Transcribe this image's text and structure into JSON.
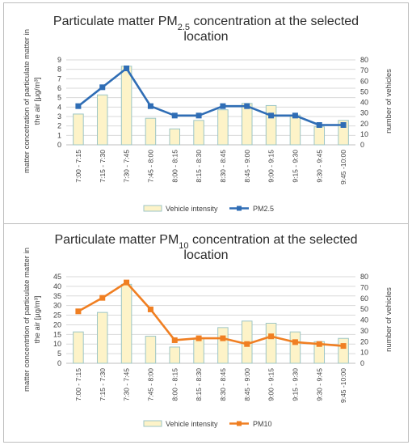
{
  "colors": {
    "bar_fill": "#fdf3c8",
    "bar_stroke": "#9dc6c6",
    "grid": "#d9d9d9",
    "pm25_line": "#2f6db5",
    "pm10_line": "#f07f22"
  },
  "chart_data": [
    {
      "type": "bar",
      "title": "Particulate matter PM",
      "title_sub": "2.5",
      "title_tail": " concentration at the selected",
      "title_line2": "location",
      "categories": [
        "7:00 - 7:15",
        "7:15 - 7:30",
        "7:30 - 7:45",
        "7:45 - 8:00",
        "8:00 - 8:15",
        "8:15 - 8:30",
        "8:30 - 8:45",
        "8:45 - 9:00",
        "9:00 - 9:15",
        "9:15 - 9:30",
        "9:30 - 9:45",
        "9:45 -10:00"
      ],
      "ylabel_line1": "matter concetration of particulate matter in",
      "ylabel_line2": "the air [µg/m³]",
      "y2label": "number of vehicles",
      "ylim": [
        0,
        9
      ],
      "y_ticks": [
        0,
        1,
        2,
        3,
        4,
        5,
        6,
        7,
        8,
        9
      ],
      "y2lim": [
        0,
        80
      ],
      "y2_ticks": [
        0,
        10,
        20,
        30,
        40,
        50,
        60,
        70,
        80
      ],
      "grid": true,
      "legend_position": "bottom",
      "series": [
        {
          "name": "Vehicle intensity",
          "kind": "bar",
          "axis": "right",
          "values": [
            29,
            47,
            74,
            25,
            15,
            23,
            33,
            39,
            37,
            28,
            17,
            23
          ]
        },
        {
          "name": "PM2.5",
          "kind": "line",
          "axis": "left",
          "values": [
            4.1,
            6.1,
            8.1,
            4.1,
            3.1,
            3.1,
            4.1,
            4.1,
            3.1,
            3.1,
            2.1,
            2.1
          ]
        }
      ]
    },
    {
      "type": "bar",
      "title": "Particulate matter PM",
      "title_sub": "10",
      "title_tail": " concentration at the selected",
      "title_line2": "location",
      "categories": [
        "7:00 - 7:15",
        "7:15 - 7:30",
        "7:30 - 7:45",
        "7:45 - 8:00",
        "8:00 - 8:15",
        "8:15 - 8:30",
        "8:30 - 8:45",
        "8:45 - 9:00",
        "9:00 - 9:15",
        "9:15 - 9:30",
        "9:30 - 9:45",
        "9:45 -10:00"
      ],
      "ylabel_line1": "matter concentrtion of particulate matter in",
      "ylabel_line2": "the air [µg/m³]",
      "y2label": "number of vehicles",
      "ylim": [
        0,
        45
      ],
      "y_ticks": [
        0,
        5,
        10,
        15,
        20,
        25,
        30,
        35,
        40,
        45
      ],
      "y2lim": [
        0,
        80
      ],
      "y2_ticks": [
        0,
        10,
        20,
        30,
        40,
        50,
        60,
        70,
        80
      ],
      "grid": true,
      "legend_position": "bottom",
      "series": [
        {
          "name": "Vehicle intensity",
          "kind": "bar",
          "axis": "right",
          "values": [
            29,
            47,
            73,
            25,
            15,
            23,
            33,
            39,
            37,
            29,
            20,
            23
          ]
        },
        {
          "name": "PM10",
          "kind": "line",
          "axis": "left",
          "values": [
            27,
            34,
            42,
            28,
            12,
            13,
            13,
            10,
            14,
            11,
            10,
            9
          ]
        }
      ]
    }
  ]
}
